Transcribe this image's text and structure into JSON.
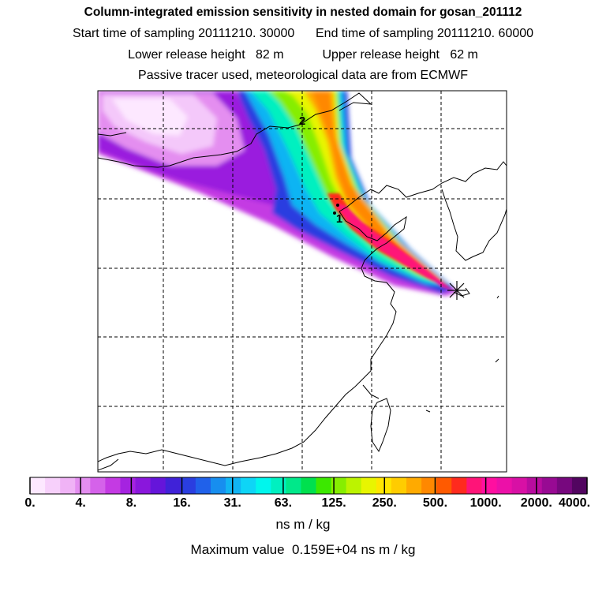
{
  "titles": {
    "main": "Column-integrated emission sensitivity in nested domain for gosan_201112",
    "sampling": "Start time of sampling 20111210. 30000      End time of sampling 20111210. 60000",
    "release": "Lower release height   82 m           Upper release height   62 m",
    "tracer": "Passive tracer used, meteorological data are from ECMWF"
  },
  "map": {
    "markers": [
      {
        "label": "2",
        "name": "trajectory-marker-2"
      },
      {
        "label": "1",
        "name": "trajectory-marker-1"
      }
    ],
    "receptor_icon": "asterisk-receptor-icon",
    "grid": "dashed",
    "colors": {
      "ocean": "#ffffff",
      "coastline": "#000000",
      "gridline": "#000000"
    }
  },
  "colorbar": {
    "colors": [
      "#fde8ff",
      "#f7d0fb",
      "#f0b3f6",
      "#e48ef0",
      "#d562ea",
      "#c43ae3",
      "#a523e0",
      "#8a17dc",
      "#6515da",
      "#4022d8",
      "#2a3ee0",
      "#2061ea",
      "#178eef",
      "#11b4f3",
      "#0ed5f6",
      "#00f6ed",
      "#00f0c0",
      "#00e88a",
      "#00e04e",
      "#3ce800",
      "#86ee00",
      "#bcf300",
      "#e8f500",
      "#ffe600",
      "#ffcc00",
      "#ffaa00",
      "#ff8800",
      "#ff5a00",
      "#ff2a1e",
      "#ff1478",
      "#ff0fa0",
      "#ec10a8",
      "#d810a5",
      "#b80c9f",
      "#980a93",
      "#77087e",
      "#520560"
    ],
    "tick_labels": [
      "0.",
      "4.",
      "8.",
      "16.",
      "31.",
      "63.",
      "125.",
      "250.",
      "500.",
      "1000.",
      "2000.",
      "4000."
    ],
    "units": "ns m / kg"
  },
  "footer": {
    "max_value": "Maximum value  0.159E+04 ns m / kg"
  }
}
